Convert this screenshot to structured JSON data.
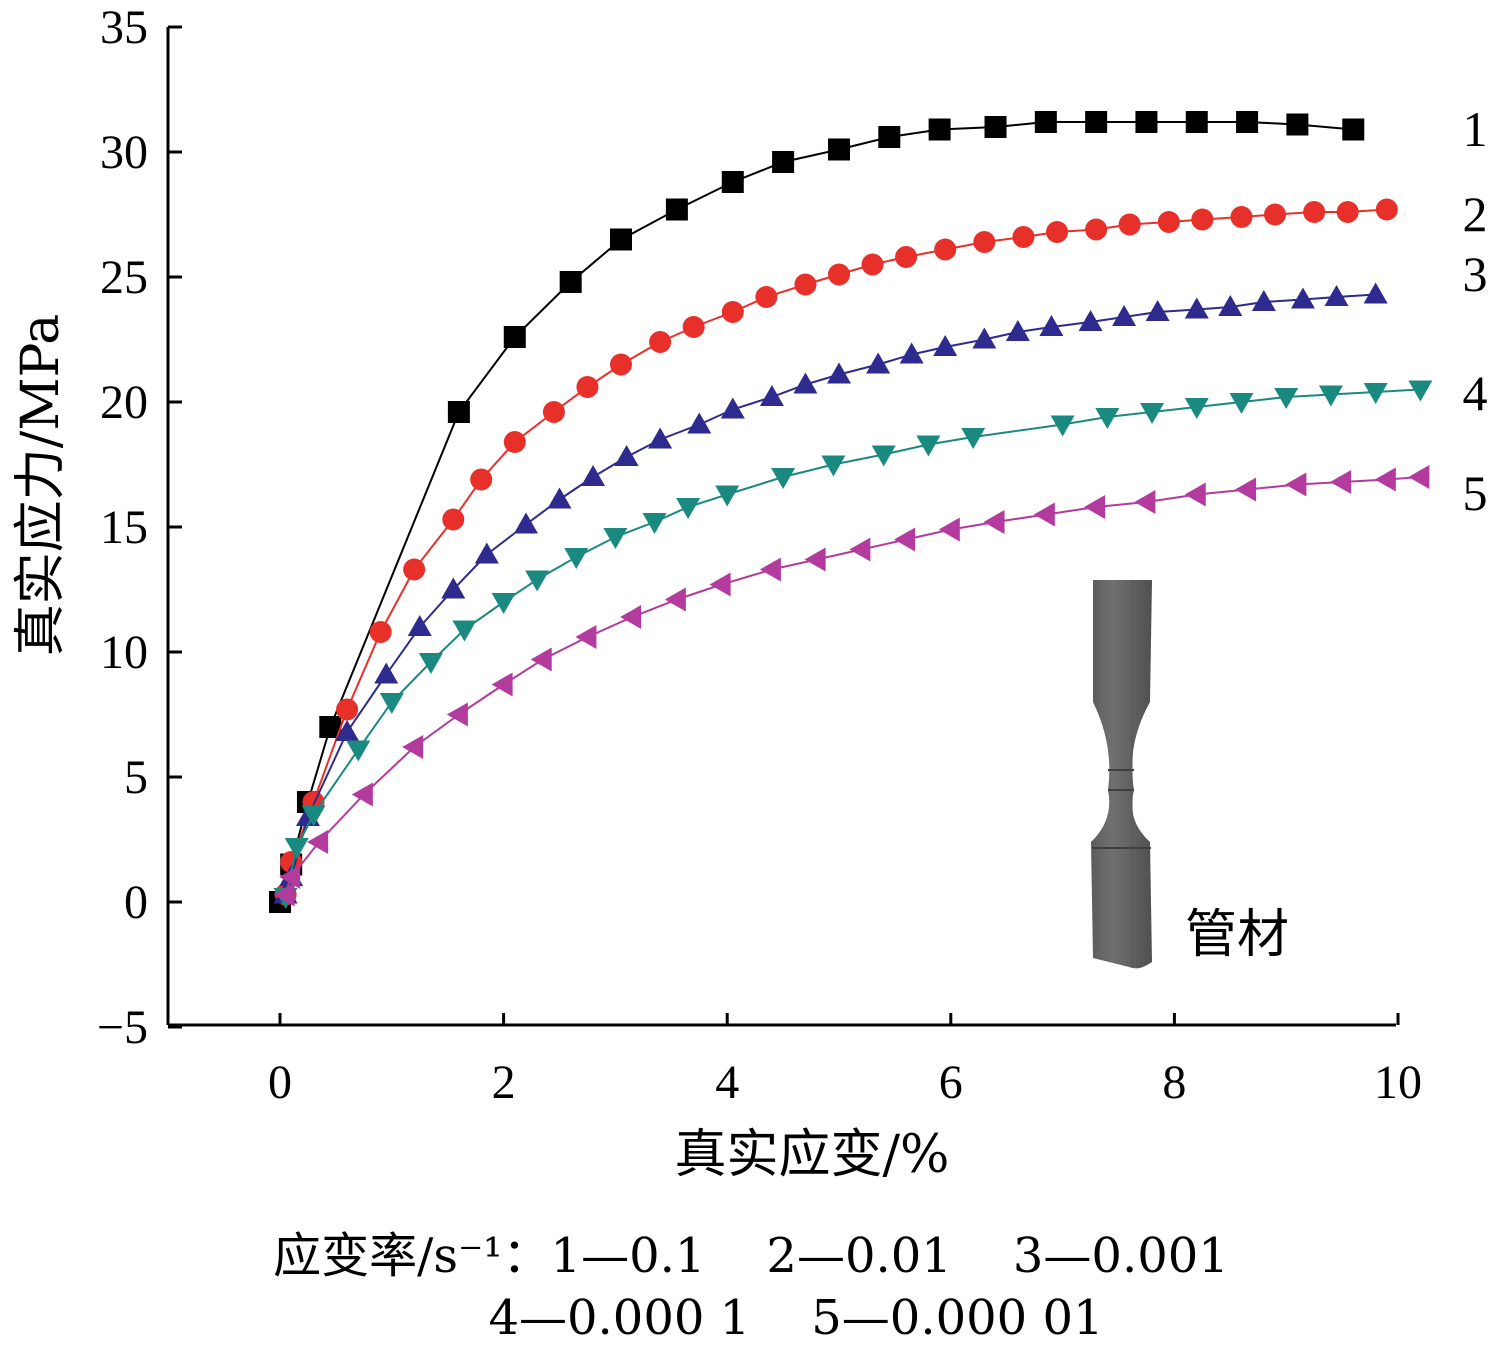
{
  "chart_data": {
    "type": "line",
    "xlabel": "真实应变/%",
    "ylabel": "真实应力/MPa",
    "xlim": [
      -1,
      10
    ],
    "ylim": [
      -5,
      35
    ],
    "xticks": [
      "0",
      "2",
      "4",
      "6",
      "8",
      "10"
    ],
    "yticks": [
      "−5",
      "0",
      "5",
      "10",
      "15",
      "20",
      "25",
      "30",
      "35"
    ],
    "grid": false,
    "series": [
      {
        "name": "1",
        "marker": "square",
        "color": "#000000",
        "points": [
          [
            0,
            0
          ],
          [
            0.1,
            1.5
          ],
          [
            0.25,
            4.0
          ],
          [
            0.45,
            7.0
          ],
          [
            1.6,
            19.6
          ],
          [
            2.1,
            22.6
          ],
          [
            2.6,
            24.8
          ],
          [
            3.05,
            26.5
          ],
          [
            3.55,
            27.7
          ],
          [
            4.05,
            28.8
          ],
          [
            4.5,
            29.6
          ],
          [
            5.0,
            30.1
          ],
          [
            5.45,
            30.6
          ],
          [
            5.9,
            30.9
          ],
          [
            6.4,
            31.0
          ],
          [
            6.85,
            31.2
          ],
          [
            7.3,
            31.2
          ],
          [
            7.75,
            31.2
          ],
          [
            8.2,
            31.2
          ],
          [
            8.65,
            31.2
          ],
          [
            9.1,
            31.1
          ],
          [
            9.6,
            30.9
          ]
        ]
      },
      {
        "name": "2",
        "marker": "circle",
        "color": "#e8302a",
        "points": [
          [
            0.05,
            0.3
          ],
          [
            0.1,
            1.6
          ],
          [
            0.3,
            4.0
          ],
          [
            0.6,
            7.7
          ],
          [
            0.9,
            10.8
          ],
          [
            1.2,
            13.3
          ],
          [
            1.55,
            15.3
          ],
          [
            1.8,
            16.9
          ],
          [
            2.1,
            18.4
          ],
          [
            2.45,
            19.6
          ],
          [
            2.75,
            20.6
          ],
          [
            3.05,
            21.5
          ],
          [
            3.4,
            22.4
          ],
          [
            3.7,
            23.0
          ],
          [
            4.05,
            23.6
          ],
          [
            4.35,
            24.2
          ],
          [
            4.7,
            24.7
          ],
          [
            5.0,
            25.1
          ],
          [
            5.3,
            25.5
          ],
          [
            5.6,
            25.8
          ],
          [
            5.95,
            26.1
          ],
          [
            6.3,
            26.4
          ],
          [
            6.65,
            26.6
          ],
          [
            6.95,
            26.8
          ],
          [
            7.3,
            26.9
          ],
          [
            7.6,
            27.1
          ],
          [
            7.95,
            27.2
          ],
          [
            8.25,
            27.3
          ],
          [
            8.6,
            27.4
          ],
          [
            8.9,
            27.5
          ],
          [
            9.25,
            27.6
          ],
          [
            9.55,
            27.6
          ],
          [
            9.9,
            27.7
          ]
        ]
      },
      {
        "name": "3",
        "marker": "triangle-up",
        "color": "#2e2a8e",
        "points": [
          [
            0.05,
            0.3
          ],
          [
            0.1,
            1.0
          ],
          [
            0.25,
            3.4
          ],
          [
            0.6,
            6.8
          ],
          [
            0.95,
            9.1
          ],
          [
            1.25,
            11.0
          ],
          [
            1.55,
            12.5
          ],
          [
            1.85,
            13.9
          ],
          [
            2.2,
            15.1
          ],
          [
            2.5,
            16.1
          ],
          [
            2.8,
            17.0
          ],
          [
            3.1,
            17.8
          ],
          [
            3.4,
            18.5
          ],
          [
            3.75,
            19.1
          ],
          [
            4.05,
            19.7
          ],
          [
            4.4,
            20.2
          ],
          [
            4.7,
            20.7
          ],
          [
            5.0,
            21.1
          ],
          [
            5.35,
            21.5
          ],
          [
            5.65,
            21.9
          ],
          [
            5.95,
            22.2
          ],
          [
            6.3,
            22.5
          ],
          [
            6.6,
            22.8
          ],
          [
            6.9,
            23.0
          ],
          [
            7.25,
            23.2
          ],
          [
            7.55,
            23.4
          ],
          [
            7.85,
            23.6
          ],
          [
            8.2,
            23.7
          ],
          [
            8.5,
            23.8
          ],
          [
            8.8,
            24.0
          ],
          [
            9.15,
            24.1
          ],
          [
            9.45,
            24.2
          ],
          [
            9.8,
            24.3
          ]
        ]
      },
      {
        "name": "4",
        "marker": "triangle-down",
        "color": "#1a8a80",
        "points": [
          [
            0.05,
            0.2
          ],
          [
            0.15,
            2.2
          ],
          [
            0.3,
            3.5
          ],
          [
            0.7,
            6.1
          ],
          [
            1.0,
            8.0
          ],
          [
            1.35,
            9.6
          ],
          [
            1.65,
            10.9
          ],
          [
            2.0,
            12.0
          ],
          [
            2.3,
            12.9
          ],
          [
            2.65,
            13.8
          ],
          [
            3.0,
            14.6
          ],
          [
            3.35,
            15.2
          ],
          [
            3.65,
            15.8
          ],
          [
            4.0,
            16.3
          ],
          [
            4.5,
            17.0
          ],
          [
            4.95,
            17.5
          ],
          [
            5.4,
            17.9
          ],
          [
            5.8,
            18.3
          ],
          [
            6.2,
            18.6
          ],
          [
            7.0,
            19.1
          ],
          [
            7.4,
            19.4
          ],
          [
            7.8,
            19.6
          ],
          [
            8.2,
            19.8
          ],
          [
            8.6,
            20.0
          ],
          [
            9.0,
            20.2
          ],
          [
            9.4,
            20.3
          ],
          [
            9.8,
            20.4
          ],
          [
            10.2,
            20.5
          ]
        ]
      },
      {
        "name": "5",
        "marker": "triangle-left",
        "color": "#b33b9e",
        "points": [
          [
            0.05,
            0.3
          ],
          [
            0.1,
            1.0
          ],
          [
            0.35,
            2.4
          ],
          [
            0.75,
            4.3
          ],
          [
            1.2,
            6.2
          ],
          [
            1.6,
            7.5
          ],
          [
            2.0,
            8.7
          ],
          [
            2.35,
            9.7
          ],
          [
            2.75,
            10.6
          ],
          [
            3.15,
            11.4
          ],
          [
            3.55,
            12.1
          ],
          [
            3.95,
            12.7
          ],
          [
            4.4,
            13.3
          ],
          [
            4.8,
            13.7
          ],
          [
            5.2,
            14.1
          ],
          [
            5.6,
            14.5
          ],
          [
            6.0,
            14.9
          ],
          [
            6.4,
            15.2
          ],
          [
            6.85,
            15.5
          ],
          [
            7.3,
            15.8
          ],
          [
            7.75,
            16.0
          ],
          [
            8.2,
            16.3
          ],
          [
            8.65,
            16.5
          ],
          [
            9.1,
            16.7
          ],
          [
            9.5,
            16.8
          ],
          [
            9.9,
            16.9
          ],
          [
            10.2,
            17.0
          ]
        ]
      }
    ]
  },
  "inset": {
    "label": "管材"
  },
  "caption": {
    "line1": "应变率/s⁻¹：1—0.1    2—0.01    3—0.001",
    "line2": "4—0.000 1    5—0.000 01"
  }
}
